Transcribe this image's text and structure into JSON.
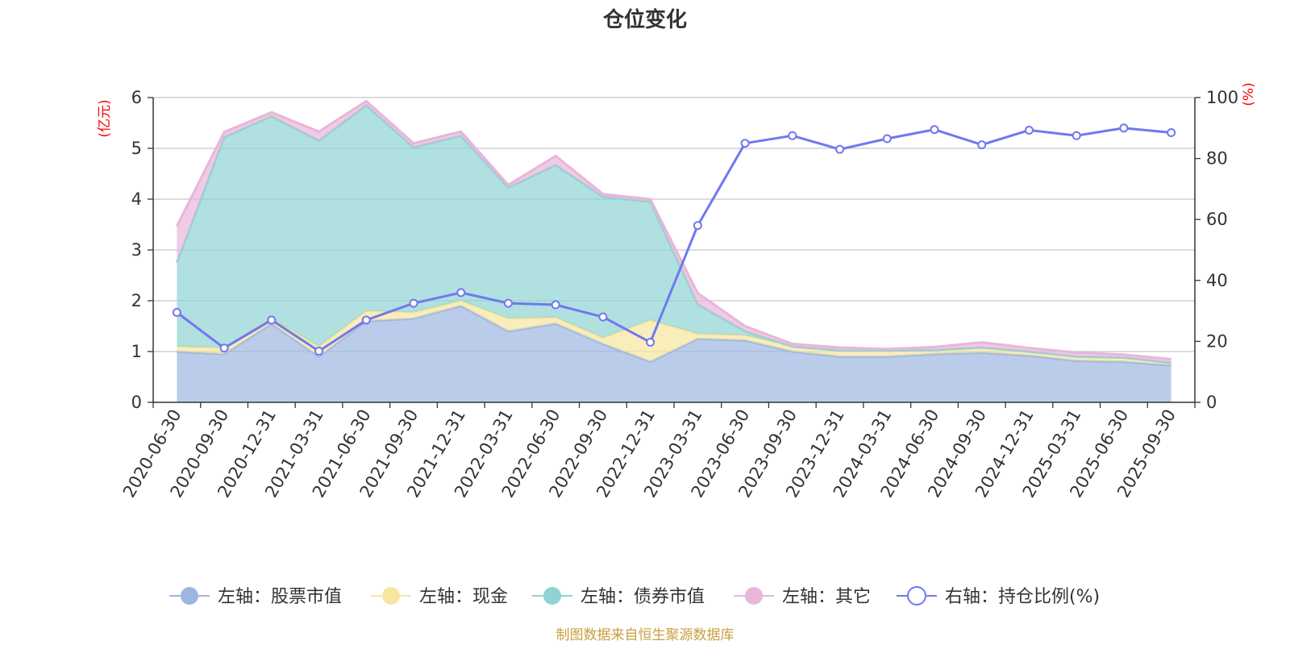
{
  "chart_data": {
    "type": "area",
    "title": "仓位变化",
    "left_axis_unit": "(亿元)",
    "right_axis_unit": "(%)",
    "ylim_left": [
      0,
      6
    ],
    "yticks_left": [
      0,
      1,
      2,
      3,
      4,
      5,
      6
    ],
    "ylim_right": [
      0,
      100
    ],
    "yticks_right": [
      0,
      20,
      40,
      60,
      80,
      100
    ],
    "categories": [
      "2020-06-30",
      "2020-09-30",
      "2020-12-31",
      "2021-03-31",
      "2021-06-30",
      "2021-09-30",
      "2021-12-31",
      "2022-03-31",
      "2022-06-30",
      "2022-09-30",
      "2022-12-31",
      "2023-03-31",
      "2023-06-30",
      "2023-09-30",
      "2023-12-31",
      "2024-03-31",
      "2024-06-30",
      "2024-09-30",
      "2024-12-31",
      "2025-03-31",
      "2025-06-30",
      "2025-09-30"
    ],
    "series": [
      {
        "name": "左轴：股票市值",
        "axis": "left",
        "kind": "stacked-area",
        "color": "#9db6e0",
        "values": [
          1.0,
          0.95,
          1.55,
          0.9,
          1.6,
          1.65,
          1.9,
          1.4,
          1.55,
          1.15,
          0.8,
          1.25,
          1.22,
          1.0,
          0.9,
          0.9,
          0.95,
          0.98,
          0.92,
          0.82,
          0.8,
          0.73
        ]
      },
      {
        "name": "左轴：现金",
        "axis": "left",
        "kind": "stacked-area",
        "color": "#f7e6a0",
        "values": [
          0.1,
          0.12,
          0.1,
          0.2,
          0.2,
          0.12,
          0.1,
          0.25,
          0.12,
          0.12,
          0.82,
          0.1,
          0.1,
          0.1,
          0.12,
          0.12,
          0.08,
          0.1,
          0.08,
          0.08,
          0.08,
          0.05
        ]
      },
      {
        "name": "左轴：债券市值",
        "axis": "left",
        "kind": "stacked-area",
        "color": "#8fd3d2",
        "values": [
          1.65,
          4.15,
          3.98,
          4.05,
          4.05,
          3.25,
          3.25,
          2.58,
          3.0,
          2.78,
          2.33,
          0.58,
          0.08,
          0.0,
          0.0,
          0.0,
          0.0,
          0.0,
          0.0,
          0.0,
          0.0,
          0.0
        ]
      },
      {
        "name": "左轴：其它",
        "axis": "left",
        "kind": "stacked-area",
        "color": "#e8b6da",
        "values": [
          0.72,
          0.1,
          0.08,
          0.18,
          0.08,
          0.08,
          0.08,
          0.05,
          0.18,
          0.05,
          0.05,
          0.22,
          0.1,
          0.05,
          0.06,
          0.03,
          0.06,
          0.1,
          0.07,
          0.08,
          0.06,
          0.07
        ]
      },
      {
        "name": "右轴：持仓比例(%)",
        "axis": "right",
        "kind": "line",
        "color": "#7078f0",
        "values": [
          29.5,
          17.8,
          27,
          16.8,
          27,
          32.5,
          36,
          32.5,
          32,
          28,
          19.7,
          58,
          85,
          87.5,
          83,
          86.5,
          89.5,
          84.5,
          89.3,
          87.5,
          90,
          88.5
        ]
      }
    ]
  },
  "source_note": "制图数据来自恒生聚源数据库"
}
